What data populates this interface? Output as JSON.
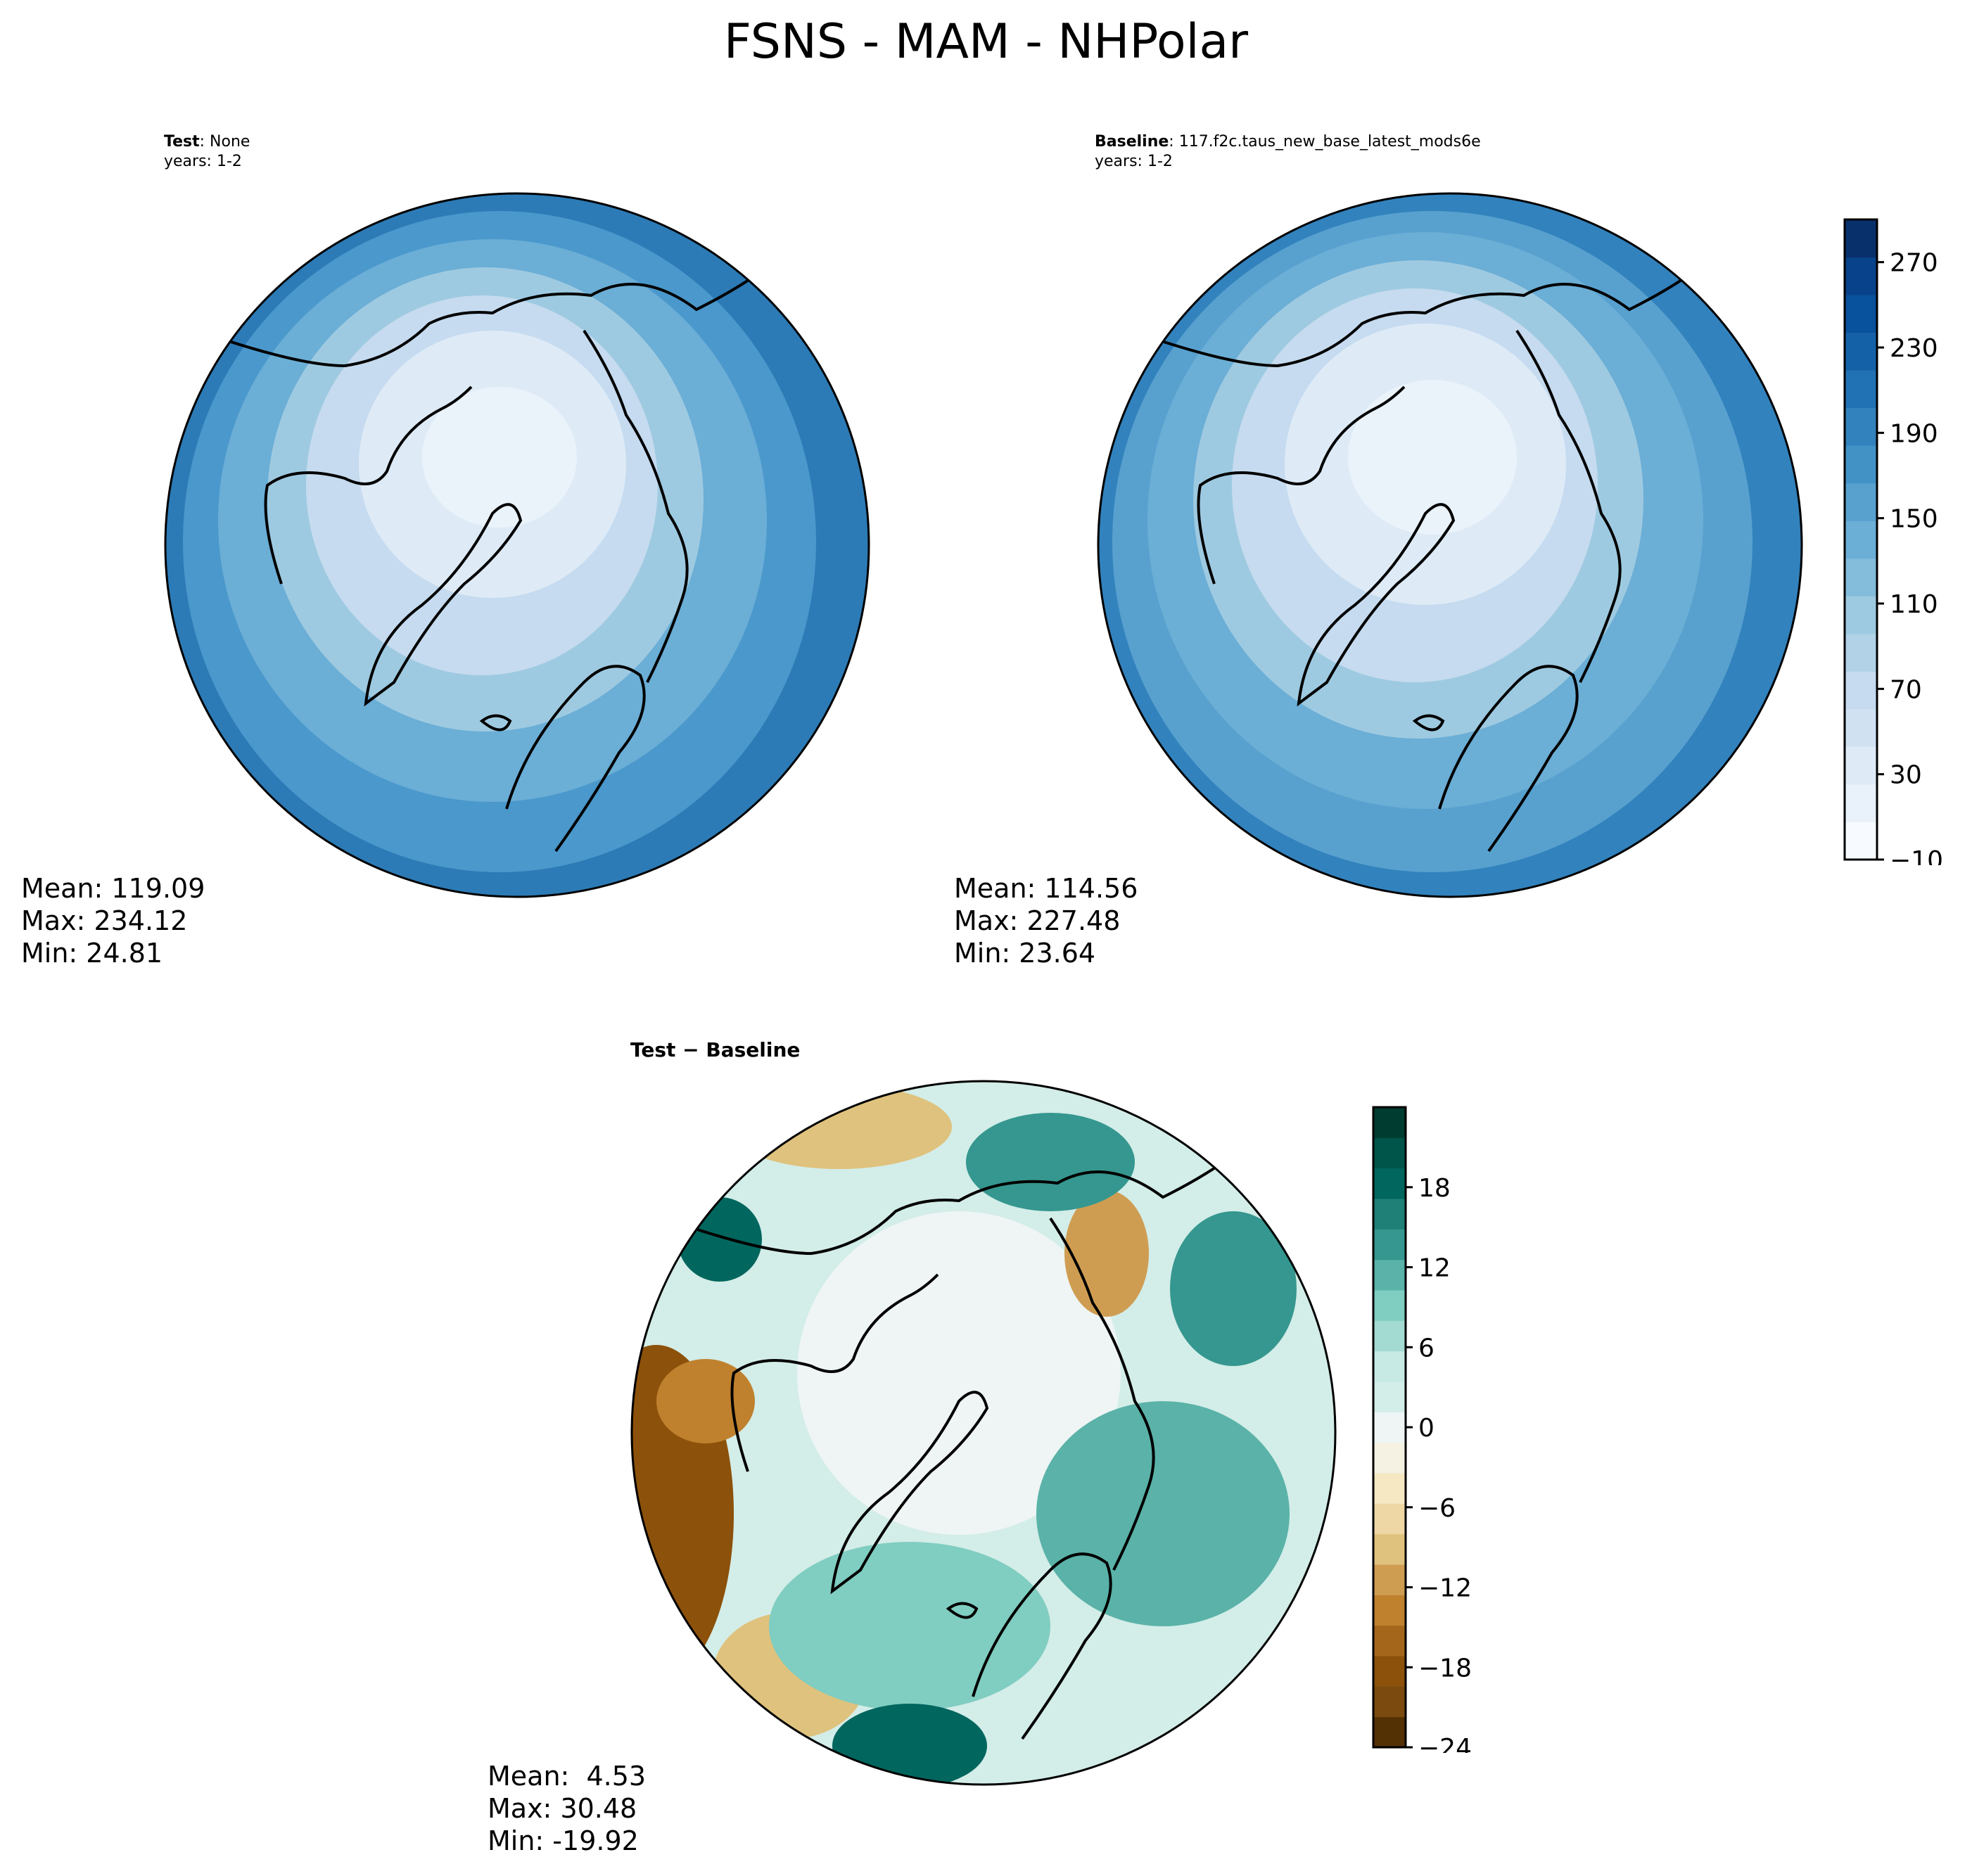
{
  "figure": {
    "title": "FSNS - MAM - NHPolar"
  },
  "panels": {
    "test": {
      "label_bold": "Test",
      "label_rest": ": None",
      "years": "years: 1-2",
      "stats": {
        "mean": "Mean: 119.09",
        "max": "Max: 234.12",
        "min": "Min: 24.81"
      }
    },
    "baseline": {
      "label_bold": "Baseline",
      "label_rest": ": 117.f2c.taus_new_base_latest_mods6e",
      "years": "years: 1-2",
      "stats": {
        "mean": "Mean: 114.56",
        "max": "Max: 227.48",
        "min": "Min: 23.64"
      }
    },
    "diff": {
      "label": "Test − Baseline",
      "stats": {
        "mean": "Mean:  4.53",
        "max": "Max: 30.48",
        "min": "Min: -19.92"
      }
    }
  },
  "colorbars": {
    "blues": {
      "ticks": [
        "−10",
        "30",
        "70",
        "110",
        "150",
        "190",
        "230",
        "270"
      ],
      "tick_values": [
        -10,
        30,
        70,
        110,
        150,
        190,
        230,
        270
      ],
      "range": [
        -10,
        290
      ],
      "colors": [
        "#f7fbff",
        "#e9f2fb",
        "#deebf7",
        "#d0e2f2",
        "#c6dbef",
        "#b1d2e7",
        "#9ecae1",
        "#84bcdb",
        "#6baed6",
        "#58a1cf",
        "#4292c6",
        "#3282bd",
        "#2171b5",
        "#1461a8",
        "#08519c",
        "#08428a",
        "#08306b"
      ]
    },
    "brbg": {
      "ticks": [
        "−24",
        "−18",
        "−12",
        "−6",
        "0",
        "6",
        "12",
        "18"
      ],
      "tick_values": [
        -24,
        -18,
        -12,
        -6,
        0,
        6,
        12,
        18
      ],
      "range": [
        -24,
        24
      ],
      "colors": [
        "#543005",
        "#7a4a0e",
        "#8c510a",
        "#a3661a",
        "#bf812d",
        "#cf9d52",
        "#dfc27d",
        "#eed7a4",
        "#f6e8c3",
        "#f5f1e3",
        "#eef5f4",
        "#d3ede8",
        "#c7eae5",
        "#a3dbd2",
        "#80cdc1",
        "#5ab2a8",
        "#35978f",
        "#1f8077",
        "#01665e",
        "#00554a",
        "#003c30"
      ]
    }
  },
  "chart_data": [
    {
      "type": "heatmap",
      "title": "Test: None",
      "projection": "north polar stereographic",
      "variable": "FSNS",
      "season": "MAM",
      "stats": {
        "mean": 119.09,
        "max": 234.12,
        "min": 24.81
      },
      "colorbar_range": [
        -10,
        290
      ],
      "colorbar_ticks": [
        -10,
        30,
        70,
        110,
        150,
        190,
        230,
        270
      ]
    },
    {
      "type": "heatmap",
      "title": "Baseline: 117.f2c.taus_new_base_latest_mods6e",
      "projection": "north polar stereographic",
      "variable": "FSNS",
      "season": "MAM",
      "stats": {
        "mean": 114.56,
        "max": 227.48,
        "min": 23.64
      },
      "colorbar_range": [
        -10,
        290
      ],
      "colorbar_ticks": [
        -10,
        30,
        70,
        110,
        150,
        190,
        230,
        270
      ]
    },
    {
      "type": "heatmap",
      "title": "Test − Baseline",
      "projection": "north polar stereographic",
      "variable": "FSNS",
      "season": "MAM",
      "stats": {
        "mean": 4.53,
        "max": 30.48,
        "min": -19.92
      },
      "colorbar_range": [
        -24,
        24
      ],
      "colorbar_ticks": [
        -24,
        -18,
        -12,
        -6,
        0,
        6,
        12,
        18
      ]
    }
  ]
}
